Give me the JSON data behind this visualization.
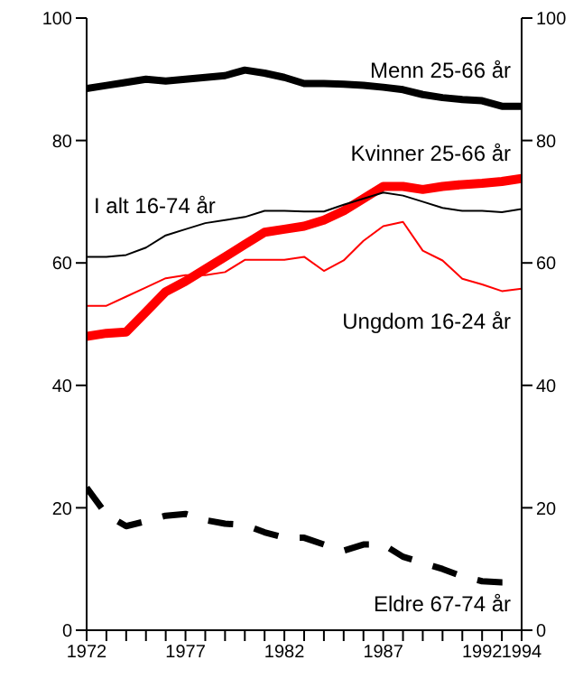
{
  "chart_data": {
    "type": "line",
    "x": [
      1972,
      1973,
      1974,
      1975,
      1976,
      1977,
      1978,
      1979,
      1980,
      1981,
      1982,
      1983,
      1984,
      1985,
      1986,
      1987,
      1988,
      1989,
      1990,
      1991,
      1992,
      1993,
      1994
    ],
    "series": [
      {
        "name": "Menn 25-66 år",
        "color": "#000000",
        "line_style": "solid",
        "values": [
          88.5,
          89,
          89.5,
          90,
          89.7,
          90,
          90.3,
          90.6,
          91.5,
          91,
          90.3,
          89.3,
          89.3,
          89.2,
          89,
          88.7,
          88.3,
          87.5,
          87,
          86.7,
          86.5,
          85.6,
          85.6
        ]
      },
      {
        "name": "Kvinner 25-66 år",
        "color": "#ff0000",
        "line_style": "solid",
        "values": [
          48,
          48.5,
          48.7,
          52,
          55.3,
          57,
          59,
          61,
          63,
          65,
          65.5,
          66,
          67,
          68.5,
          70.5,
          72.5,
          72.5,
          72,
          72.5,
          72.8,
          73,
          73.3,
          73.8
        ]
      },
      {
        "name": "I alt 16-74 år",
        "color": "#000000",
        "line_style": "solid",
        "values": [
          61,
          61,
          61.3,
          62.5,
          64.5,
          65.5,
          66.5,
          67,
          67.5,
          68.5,
          68.5,
          68.4,
          68.4,
          69.5,
          70.5,
          71.5,
          71,
          70,
          69,
          68.5,
          68.5,
          68.3,
          68.8
        ]
      },
      {
        "name": "Ungdom 16-24 år",
        "color": "#ff0000",
        "line_style": "solid",
        "values": [
          53,
          53,
          54.5,
          56,
          57.5,
          58,
          58,
          58.5,
          60.5,
          60.5,
          60.5,
          61,
          58.7,
          60.4,
          63.6,
          66,
          66.7,
          62,
          60.4,
          57.4,
          56.5,
          55.4,
          55.8
        ]
      },
      {
        "name": "Eldre 67-74 år",
        "color": "#000000",
        "line_style": "dashed",
        "values": [
          23.3,
          18.9,
          17,
          17.8,
          18.7,
          19,
          18,
          17.4,
          17.2,
          16,
          15.1,
          15.1,
          14,
          13,
          14,
          14,
          12,
          11,
          10,
          8.8,
          8,
          7.8,
          7.8
        ]
      }
    ],
    "xlim": [
      1972,
      1994
    ],
    "xticks": [
      1972,
      {
        "value": 1973,
        "label": null
      },
      {
        "value": 1974,
        "label": null
      },
      {
        "value": 1975,
        "label": null
      },
      {
        "value": 1976,
        "label": null
      },
      1977,
      {
        "value": 1978,
        "label": null
      },
      {
        "value": 1979,
        "label": null
      },
      {
        "value": 1980,
        "label": null
      },
      {
        "value": 1981,
        "label": null
      },
      1982,
      {
        "value": 1983,
        "label": null
      },
      {
        "value": 1984,
        "label": null
      },
      {
        "value": 1985,
        "label": null
      },
      {
        "value": 1986,
        "label": null
      },
      1987,
      {
        "value": 1988,
        "label": null
      },
      {
        "value": 1989,
        "label": null
      },
      {
        "value": 1990,
        "label": null
      },
      {
        "value": 1991,
        "label": null
      },
      1992,
      {
        "value": 1993,
        "label": null
      },
      1994
    ],
    "ylim": [
      0,
      100
    ],
    "yticks": [
      0,
      20,
      40,
      60,
      80,
      100
    ],
    "y2lim": [
      0,
      100
    ],
    "y2ticks": [
      0,
      20,
      40,
      60,
      80,
      100
    ],
    "grid": false,
    "legend": false,
    "marker": "none"
  }
}
